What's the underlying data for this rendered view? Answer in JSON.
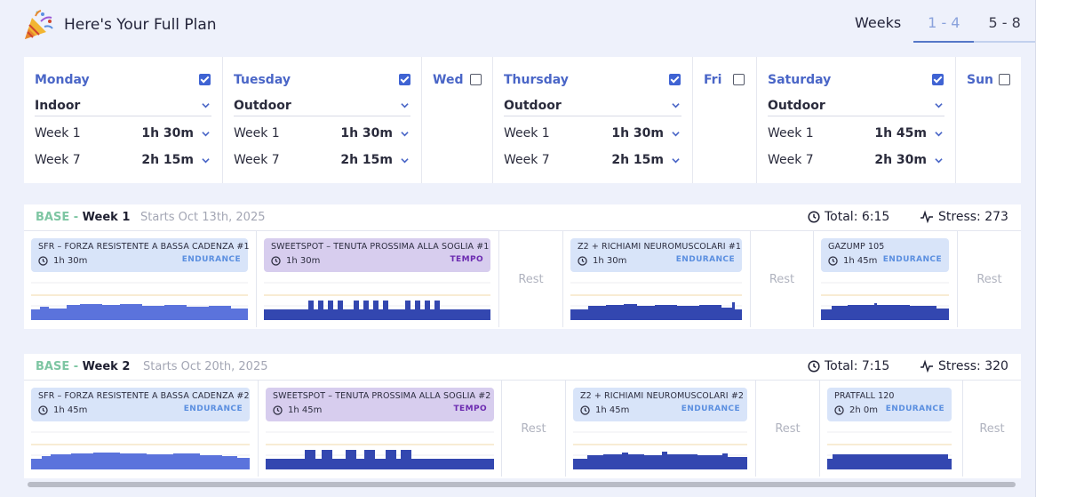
{
  "header": {
    "title": "Here's Your Full Plan",
    "weeks_label": "Weeks",
    "tabs": [
      "1 - 4",
      "5 - 8"
    ],
    "active_tab": "1 - 4"
  },
  "days": [
    {
      "name": "Monday",
      "checked": true,
      "mode": "Indoor",
      "row1_label": "Week 1",
      "row1_value": "1h 30m",
      "row2_label": "Week 7",
      "row2_value": "2h 15m"
    },
    {
      "name": "Tuesday",
      "checked": true,
      "mode": "Outdoor",
      "row1_label": "Week 1",
      "row1_value": "1h 30m",
      "row2_label": "Week 7",
      "row2_value": "2h 15m"
    },
    {
      "name": "Wed",
      "checked": false
    },
    {
      "name": "Thursday",
      "checked": true,
      "mode": "Outdoor",
      "row1_label": "Week 1",
      "row1_value": "1h 30m",
      "row2_label": "Week 7",
      "row2_value": "2h 15m"
    },
    {
      "name": "Fri",
      "checked": false
    },
    {
      "name": "Saturday",
      "checked": true,
      "mode": "Outdoor",
      "row1_label": "Week 1",
      "row1_value": "1h 45m",
      "row2_label": "Week 7",
      "row2_value": "2h 30m"
    },
    {
      "name": "Sun",
      "checked": false
    }
  ],
  "weeks": [
    {
      "phase": "BASE -",
      "week": "Week 1",
      "starts": "Starts Oct 13th, 2025",
      "total": "Total: 6:15",
      "stress": "Stress: 273",
      "rest_label": "Rest",
      "workouts": [
        {
          "title": "SFR – FORZA RESISTENTE A BASSA CADENZA #1",
          "duration": "1h 30m",
          "type": "ENDURANCE"
        },
        {
          "title": "SWEETSPOT – TENUTA PROSSIMA ALLA SOGLIA #1",
          "duration": "1h 30m",
          "type": "TEMPO"
        },
        {
          "title": "Z2 + RICHIAMI NEUROMUSCOLARI #1",
          "duration": "1h 30m",
          "type": "ENDURANCE"
        },
        {
          "title": "GAZUMP 105",
          "duration": "1h 45m",
          "type": "ENDURANCE"
        }
      ]
    },
    {
      "phase": "BASE -",
      "week": "Week 2",
      "starts": "Starts Oct 20th, 2025",
      "total": "Total: 7:15",
      "stress": "Stress: 320",
      "rest_label": "Rest",
      "workouts": [
        {
          "title": "SFR – FORZA RESISTENTE A BASSA CADENZA #2",
          "duration": "1h 45m",
          "type": "ENDURANCE"
        },
        {
          "title": "SWEETSPOT – TENUTA PROSSIMA ALLA SOGLIA #2",
          "duration": "1h 45m",
          "type": "TEMPO"
        },
        {
          "title": "Z2 + RICHIAMI NEUROMUSCOLARI #2",
          "duration": "1h 45m",
          "type": "ENDURANCE"
        },
        {
          "title": "PRATFALL 120",
          "duration": "2h 0m",
          "type": "ENDURANCE"
        }
      ]
    }
  ],
  "colors": {
    "accent": "#4a66c7",
    "phase": "#7ec6a3",
    "endurance_card": "#d8e4f9",
    "tempo_card": "#d7cdee",
    "bar_light": "#5b73dc",
    "bar_dark": "#3347b0"
  },
  "icons": [
    "party-popper-icon",
    "checkbox-icon",
    "chevron-down-icon",
    "clock-icon",
    "pulse-icon"
  ]
}
